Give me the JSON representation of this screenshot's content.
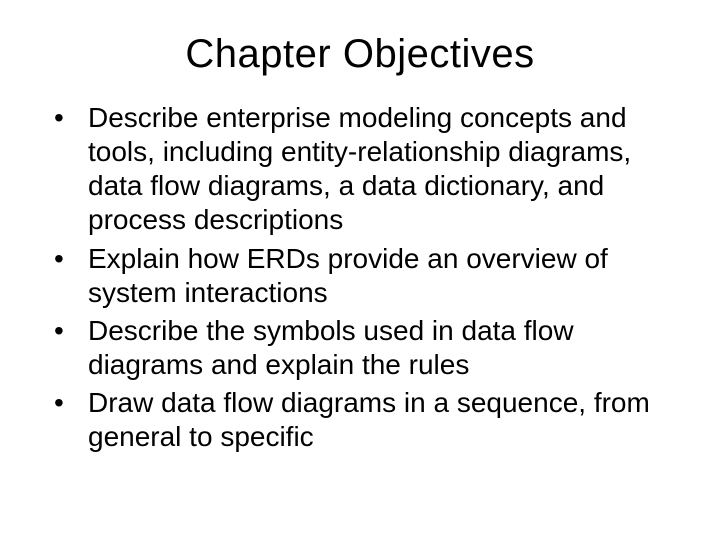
{
  "slide": {
    "title": "Chapter Objectives",
    "bullets": [
      "Describe enterprise modeling concepts and tools, including entity-relationship diagrams, data flow diagrams, a data dictionary, and process descriptions",
      "Explain how ERDs provide an overview of system interactions",
      "Describe the symbols used in data flow diagrams and explain the rules",
      "Draw data flow diagrams in a sequence, from general to specific"
    ]
  },
  "style": {
    "background_color": "#ffffff",
    "text_color": "#000000",
    "title_fontsize": 40,
    "body_fontsize": 28,
    "font_family": "Arial"
  }
}
